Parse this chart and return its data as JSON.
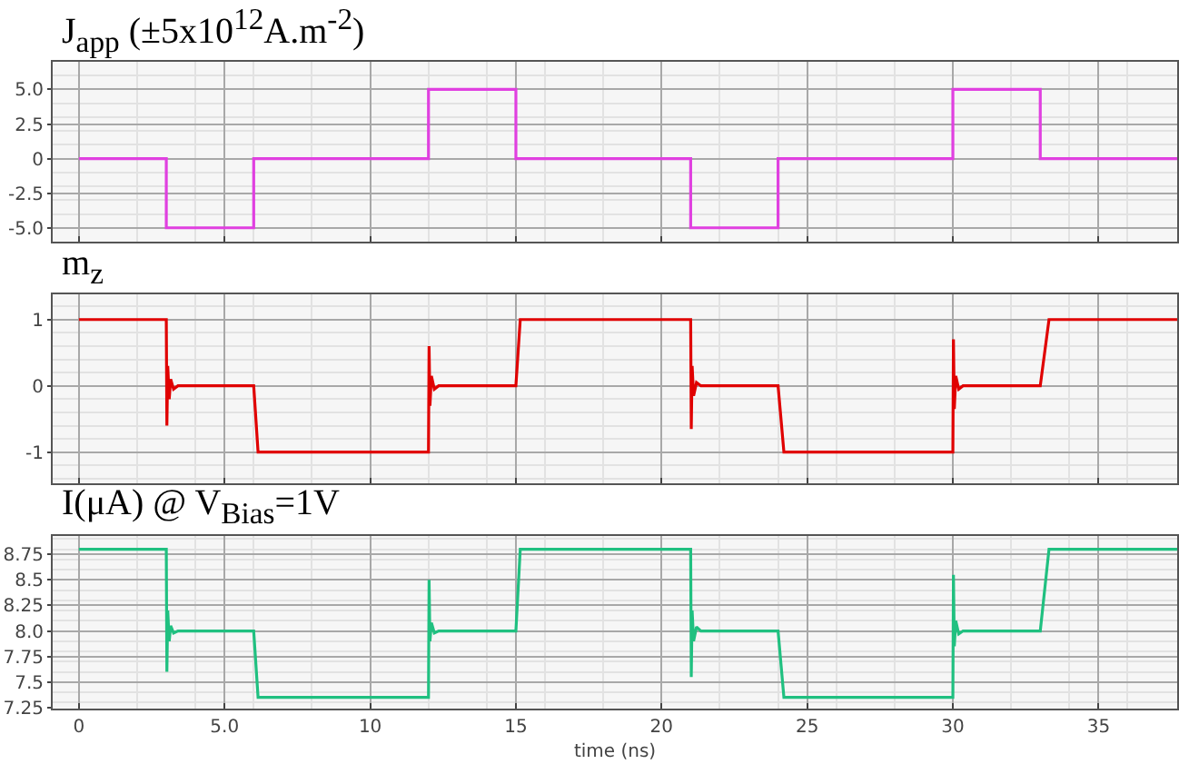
{
  "chart_data": [
    {
      "type": "line",
      "title": "J$_{app}$ (±5x10$^{12}$A.m$^{-2}$)",
      "x": [
        0,
        3,
        3,
        6,
        6,
        12,
        12,
        15,
        15,
        21,
        21,
        24,
        24,
        30,
        30,
        33,
        33,
        37.7
      ],
      "series": [
        {
          "color": "#e040e0",
          "values": [
            0,
            0,
            -5,
            -5,
            0,
            0,
            5,
            5,
            0,
            0,
            -5,
            -5,
            0,
            0,
            5,
            5,
            0,
            0
          ]
        }
      ],
      "xlim": [
        -0.9,
        37.7
      ],
      "ylim": [
        -6,
        7
      ],
      "yticks": [
        {
          "value": -5,
          "label": "-5.0"
        },
        -2.5,
        0,
        2.5,
        {
          "value": 5,
          "label": "5.0"
        }
      ],
      "tick_labels": "y",
      "grid": true,
      "marker": "none",
      "line_style": "solid"
    },
    {
      "type": "line",
      "title": "m$_{z}$",
      "x": [
        0,
        3,
        3.02,
        3.05,
        3.1,
        3.15,
        3.25,
        3.4,
        6,
        6.15,
        12,
        12.02,
        12.05,
        12.1,
        12.2,
        12.35,
        15,
        15.15,
        21,
        21.02,
        21.05,
        21.1,
        21.2,
        21.35,
        24,
        24.2,
        30,
        30.02,
        30.05,
        30.1,
        30.2,
        30.35,
        33,
        33.3,
        37.7
      ],
      "series": [
        {
          "color": "#e00000",
          "values": [
            1,
            1,
            -0.6,
            0.3,
            -0.2,
            0.1,
            -0.05,
            0,
            0,
            -1,
            -1,
            0.6,
            -0.3,
            0.15,
            -0.05,
            0,
            0,
            1,
            1,
            -0.65,
            0.3,
            -0.15,
            0.05,
            0,
            0,
            -1,
            -1,
            0.7,
            -0.35,
            0.15,
            -0.05,
            0,
            0,
            1,
            1
          ]
        }
      ],
      "xlim": [
        -0.9,
        37.7
      ],
      "ylim": [
        -1.47,
        1.38
      ],
      "yticks": [
        -1,
        0,
        1
      ],
      "tick_labels": "y",
      "grid": true,
      "marker": "none",
      "line_style": "solid"
    },
    {
      "type": "line",
      "title": "I(μA) @ V$_{Bias}$=1V",
      "xlabel": "time (ns)",
      "x": [
        0,
        3,
        3.02,
        3.05,
        3.1,
        3.15,
        3.25,
        3.4,
        6,
        6.15,
        12,
        12.02,
        12.05,
        12.1,
        12.2,
        12.35,
        15,
        15.15,
        21,
        21.02,
        21.05,
        21.1,
        21.2,
        21.35,
        24,
        24.2,
        30,
        30.02,
        30.05,
        30.1,
        30.2,
        30.35,
        33,
        33.3,
        37.7
      ],
      "series": [
        {
          "color": "#20c080",
          "values": [
            8.8,
            8.8,
            7.6,
            8.2,
            7.9,
            8.05,
            7.98,
            8.0,
            8.0,
            7.35,
            7.35,
            8.5,
            7.9,
            8.08,
            7.98,
            8.0,
            8.0,
            8.8,
            8.8,
            7.55,
            8.2,
            7.9,
            8.04,
            8.0,
            8.0,
            7.35,
            7.35,
            8.55,
            7.85,
            8.1,
            7.97,
            8.0,
            8.0,
            8.8,
            8.8
          ]
        }
      ],
      "xlim": [
        -0.9,
        37.7
      ],
      "xticks": [
        0,
        {
          "value": 5,
          "label": "5.0"
        },
        10,
        15,
        20,
        25,
        30,
        35
      ],
      "ylim": [
        7.24,
        8.93
      ],
      "yticks": [
        7.25,
        7.5,
        7.75,
        {
          "value": 8,
          "label": "8.0"
        },
        8.25,
        8.5,
        8.75
      ],
      "grid": true,
      "marker": "none",
      "line_style": "solid"
    }
  ]
}
